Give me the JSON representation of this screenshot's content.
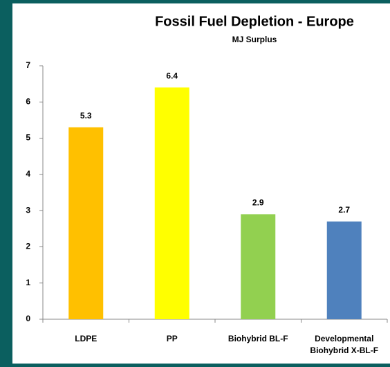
{
  "chart_data": {
    "type": "bar",
    "title": "Fossil Fuel Depletion - Europe",
    "subtitle": "MJ Surplus",
    "categories": [
      "LDPE",
      "PP",
      "Biohybrid BL-F",
      "Developmental Biohybrid X-BL-F"
    ],
    "values": [
      5.3,
      6.4,
      2.9,
      2.7
    ],
    "colors": [
      "#ffc000",
      "#ffff00",
      "#92d050",
      "#4f81bd"
    ],
    "ylim": [
      0,
      7
    ],
    "yticks": [
      0,
      1,
      2,
      3,
      4,
      5,
      6,
      7
    ],
    "grid": false
  }
}
